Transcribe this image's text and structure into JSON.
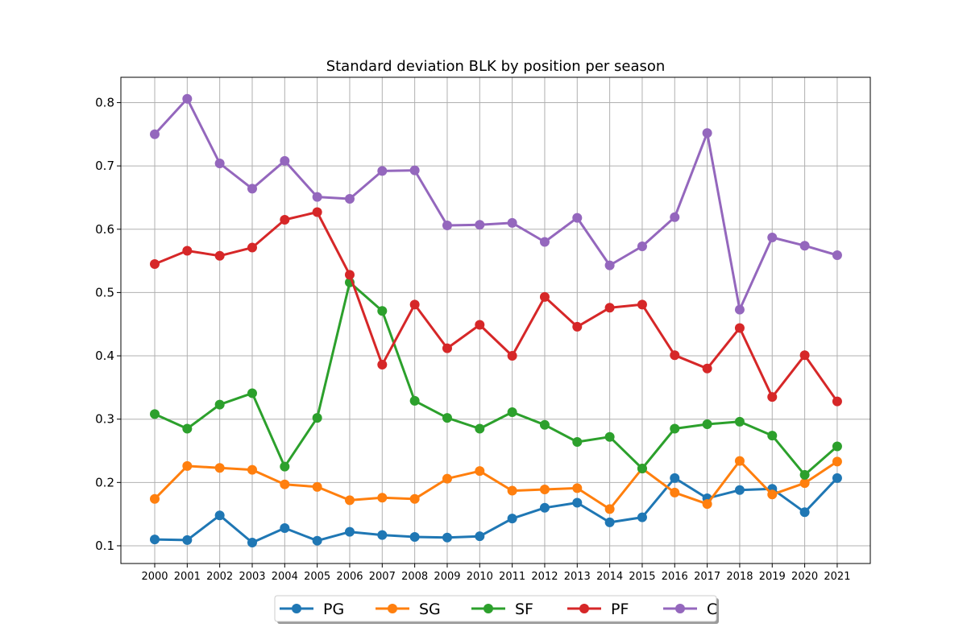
{
  "chart_data": {
    "type": "line",
    "title": "Standard deviation BLK by position per season",
    "xlabel": "",
    "ylabel": "",
    "categories": [
      "2000",
      "2001",
      "2002",
      "2003",
      "2004",
      "2005",
      "2006",
      "2007",
      "2008",
      "2009",
      "2010",
      "2011",
      "2012",
      "2013",
      "2014",
      "2015",
      "2016",
      "2017",
      "2018",
      "2019",
      "2020",
      "2021"
    ],
    "ylim": [
      0.072,
      0.84
    ],
    "yticks": [
      "0.1",
      "0.2",
      "0.3",
      "0.4",
      "0.5",
      "0.6",
      "0.7",
      "0.8"
    ],
    "grid": true,
    "legend_position": "bottom-center",
    "series": [
      {
        "name": "PG",
        "color": "#1f77b4",
        "values": [
          0.11,
          0.109,
          0.148,
          0.105,
          0.128,
          0.108,
          0.122,
          0.117,
          0.114,
          0.113,
          0.115,
          0.143,
          0.16,
          0.168,
          0.137,
          0.145,
          0.207,
          0.175,
          0.188,
          0.19,
          0.153,
          0.207
        ]
      },
      {
        "name": "SG",
        "color": "#ff7f0e",
        "values": [
          0.174,
          0.226,
          0.223,
          0.22,
          0.197,
          0.193,
          0.172,
          0.176,
          0.174,
          0.206,
          0.218,
          0.187,
          0.189,
          0.191,
          0.158,
          0.222,
          0.184,
          0.166,
          0.234,
          0.181,
          0.199,
          0.233
        ]
      },
      {
        "name": "SF",
        "color": "#2ca02c",
        "values": [
          0.308,
          0.285,
          0.323,
          0.341,
          0.225,
          0.302,
          0.516,
          0.471,
          0.329,
          0.302,
          0.285,
          0.311,
          0.291,
          0.264,
          0.272,
          0.222,
          0.285,
          0.292,
          0.296,
          0.274,
          0.212,
          0.257
        ]
      },
      {
        "name": "PF",
        "color": "#d62728",
        "values": [
          0.545,
          0.566,
          0.558,
          0.571,
          0.615,
          0.627,
          0.528,
          0.386,
          0.481,
          0.412,
          0.449,
          0.4,
          0.493,
          0.446,
          0.476,
          0.481,
          0.401,
          0.38,
          0.444,
          0.335,
          0.401,
          0.328
        ]
      },
      {
        "name": "C",
        "color": "#9467bd",
        "values": [
          0.75,
          0.806,
          0.704,
          0.664,
          0.708,
          0.651,
          0.648,
          0.692,
          0.693,
          0.606,
          0.607,
          0.61,
          0.58,
          0.618,
          0.543,
          0.573,
          0.619,
          0.752,
          0.473,
          0.587,
          0.574,
          0.559
        ]
      }
    ]
  }
}
